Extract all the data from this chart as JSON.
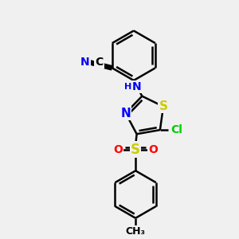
{
  "background_color": "#f0f0f0",
  "bond_color": "#000000",
  "bond_width": 1.8,
  "S_color": "#cccc00",
  "N_color": "#0000ff",
  "O_color": "#ff0000",
  "Cl_color": "#00cc00",
  "text_fontsize": 10,
  "figsize": [
    3.0,
    3.0
  ],
  "dpi": 100,
  "xlim": [
    0,
    10
  ],
  "ylim": [
    0,
    10
  ]
}
